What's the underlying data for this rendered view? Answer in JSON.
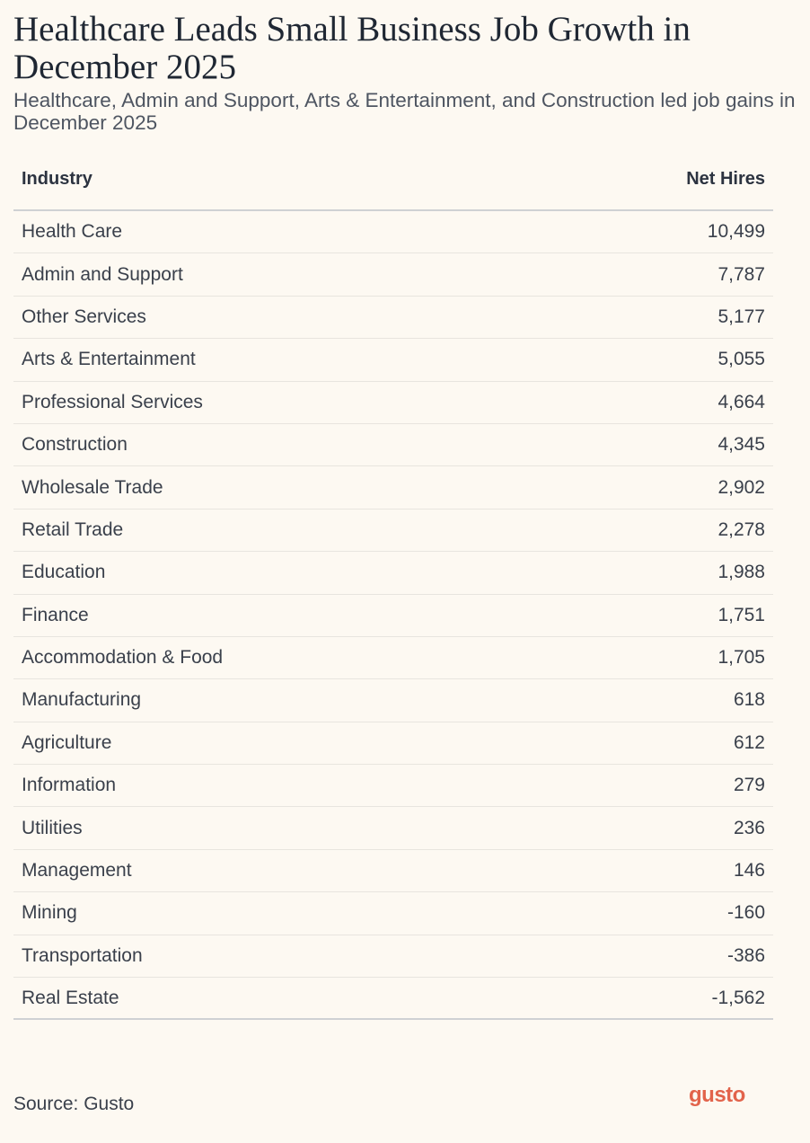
{
  "title": "Healthcare Leads Small Business Job Growth in December 2025",
  "subtitle": "Healthcare, Admin and Support, Arts & Entertainment, and Construction led job gains in December 2025",
  "source": "Source: Gusto",
  "logo": "gusto",
  "colors": {
    "background": "#fdf9f2",
    "text": "#2c3340",
    "brand": "#e2634b"
  },
  "chart_data": {
    "type": "table",
    "columns": [
      "Industry",
      "Net Hires"
    ],
    "rows": [
      {
        "industry": "Health Care",
        "net_hires": "10,499"
      },
      {
        "industry": "Admin and Support",
        "net_hires": "7,787"
      },
      {
        "industry": "Other Services",
        "net_hires": "5,177"
      },
      {
        "industry": "Arts & Entertainment",
        "net_hires": "5,055"
      },
      {
        "industry": "Professional Services",
        "net_hires": "4,664"
      },
      {
        "industry": "Construction",
        "net_hires": "4,345"
      },
      {
        "industry": "Wholesale Trade",
        "net_hires": "2,902"
      },
      {
        "industry": "Retail Trade",
        "net_hires": "2,278"
      },
      {
        "industry": "Education",
        "net_hires": "1,988"
      },
      {
        "industry": "Finance",
        "net_hires": "1,751"
      },
      {
        "industry": "Accommodation & Food",
        "net_hires": "1,705"
      },
      {
        "industry": "Manufacturing",
        "net_hires": "618"
      },
      {
        "industry": "Agriculture",
        "net_hires": "612"
      },
      {
        "industry": "Information",
        "net_hires": "279"
      },
      {
        "industry": "Utilities",
        "net_hires": "236"
      },
      {
        "industry": "Management",
        "net_hires": "146"
      },
      {
        "industry": "Mining",
        "net_hires": "-160"
      },
      {
        "industry": "Transportation",
        "net_hires": "-386"
      },
      {
        "industry": "Real Estate",
        "net_hires": "-1,562"
      }
    ]
  }
}
